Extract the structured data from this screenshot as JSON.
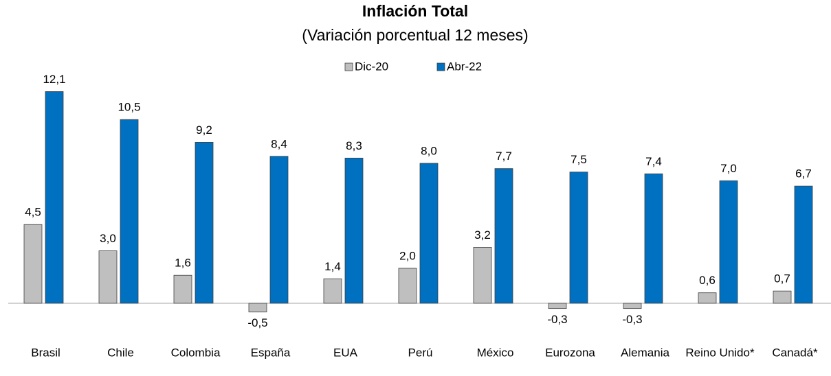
{
  "chart_data": {
    "type": "bar",
    "title": "Inflación Total",
    "subtitle": "(Variación porcentual 12 meses)",
    "categories": [
      "Brasil",
      "Chile",
      "Colombia",
      "España",
      "EUA",
      "Perú",
      "México",
      "Eurozona",
      "Alemania",
      "Reino Unido*",
      "Canadá*"
    ],
    "series": [
      {
        "name": "Dic-20",
        "color": "#bfbfbf",
        "values": [
          4.5,
          3.0,
          1.6,
          -0.5,
          1.4,
          2.0,
          3.2,
          -0.3,
          -0.3,
          0.6,
          0.7
        ],
        "value_labels": [
          "4,5",
          "3,0",
          "1,6",
          "-0,5",
          "1,4",
          "2,0",
          "3,2",
          "-0,3",
          "-0,3",
          "0,6",
          "0,7"
        ]
      },
      {
        "name": "Abr-22",
        "color": "#0070c0",
        "values": [
          12.1,
          10.5,
          9.2,
          8.4,
          8.3,
          8.0,
          7.7,
          7.5,
          7.4,
          7.0,
          6.7
        ],
        "value_labels": [
          "12,1",
          "10,5",
          "9,2",
          "8,4",
          "8,3",
          "8,0",
          "7,7",
          "7,5",
          "7,4",
          "7,0",
          "6,7"
        ]
      }
    ],
    "legend": "top"
  }
}
